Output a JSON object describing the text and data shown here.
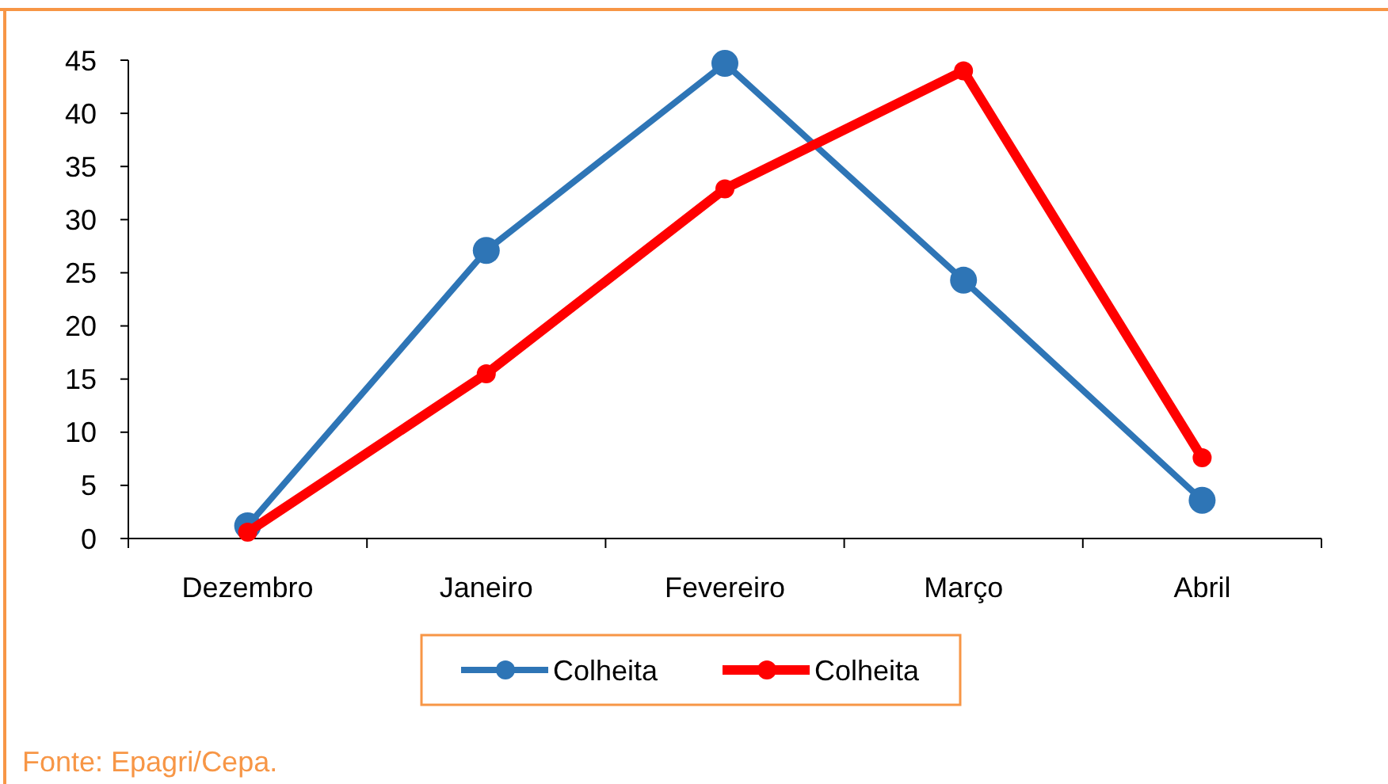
{
  "chart_data": {
    "type": "line",
    "categories": [
      "Dezembro",
      "Janeiro",
      "Fevereiro",
      "Março",
      "Abril"
    ],
    "series": [
      {
        "name": "Colheita",
        "color": "#2e75b6",
        "values": [
          1.2,
          27.1,
          44.7,
          24.3,
          3.6
        ]
      },
      {
        "name": "Colheita",
        "color": "#ff0000",
        "values": [
          0.6,
          15.5,
          32.9,
          44.0,
          7.6
        ]
      }
    ],
    "ylim": [
      0,
      45
    ],
    "yticks": [
      0,
      5,
      10,
      15,
      20,
      25,
      30,
      35,
      40,
      45
    ],
    "grid": false,
    "legend": "bottom",
    "marker": "circle",
    "line_style": "solid",
    "annotations": [
      "Fonte: Epagri/Cepa."
    ]
  }
}
